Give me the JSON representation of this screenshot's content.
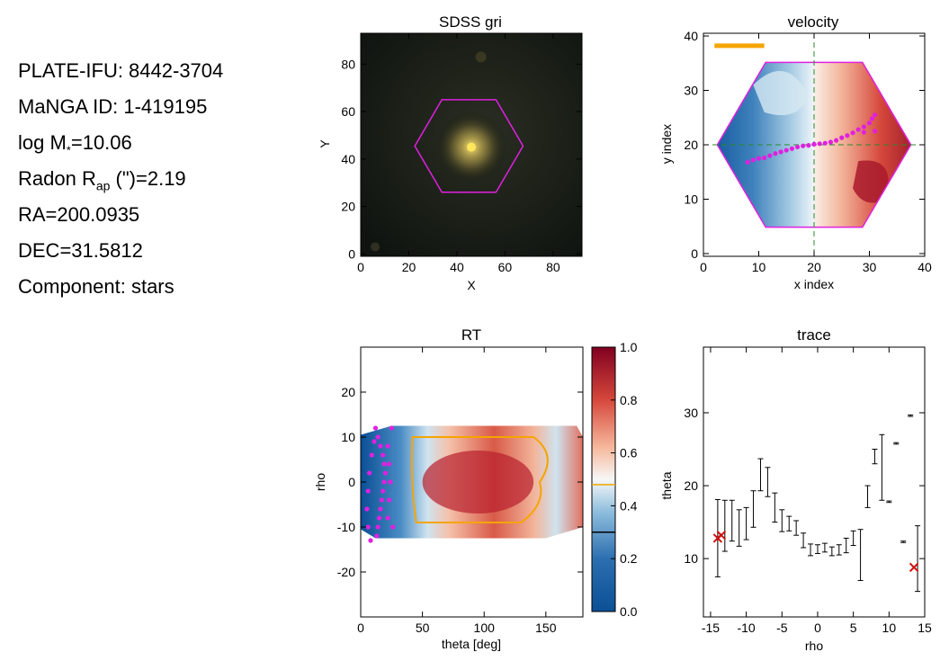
{
  "info": {
    "plate_ifu": "PLATE-IFU: 8442-3704",
    "manga_id": "MaNGA ID: 1-419195",
    "logm_prefix": "log M",
    "logm_sub": "*",
    "logm_value": "=10.06",
    "radon_prefix": "Radon R",
    "radon_sub": "ap",
    "radon_value": " (\")=2.19",
    "ra": "RA=200.0935",
    "dec": "DEC=31.5812",
    "component": "Component: stars"
  },
  "colors": {
    "hexagon": "#e020e0",
    "trace_points": "#e020e0",
    "scale_bar": "#f5a500",
    "contour": "#f5a500",
    "guide_lines": "#2a8a2a",
    "cross": "#d01010",
    "colorbar_low": "#0b4f95",
    "colorbar_mid": "#f7f7f7",
    "colorbar_high": "#800020"
  },
  "chart_data": [
    {
      "type": "image",
      "title": "SDSS gri",
      "xlabel": "X",
      "ylabel": "Y",
      "xlim": [
        0,
        92
      ],
      "ylim": [
        -1,
        93
      ],
      "xticks": [
        "0",
        "20",
        "40",
        "60",
        "80"
      ],
      "yticks": [
        "0",
        "20",
        "40",
        "60",
        "80"
      ],
      "galaxy_center": [
        46,
        45
      ],
      "hexagon_center": [
        45,
        45.5
      ],
      "hexagon_radius": 22.5
    },
    {
      "type": "map",
      "title": "velocity",
      "xlabel": "x index",
      "ylabel": "y index",
      "xlim": [
        0,
        40
      ],
      "ylim": [
        -0.5,
        40.5
      ],
      "xticks": [
        "0",
        "10",
        "20",
        "30",
        "40"
      ],
      "yticks": [
        "0",
        "10",
        "20",
        "30",
        "40"
      ],
      "hexagon_center": [
        20,
        20
      ],
      "hexagon_radius": 17.5,
      "guide_x": 20,
      "guide_y": 20,
      "scale_bar": [
        [
          2,
          38.2
        ],
        [
          11,
          38.2
        ]
      ],
      "trace_points": [
        [
          8,
          16.8
        ],
        [
          9,
          17.2
        ],
        [
          10,
          17.5
        ],
        [
          11,
          17.6
        ],
        [
          12,
          18
        ],
        [
          13,
          18.4
        ],
        [
          14,
          18.7
        ],
        [
          15,
          19
        ],
        [
          16,
          19.3
        ],
        [
          17,
          19.6
        ],
        [
          18,
          19.8
        ],
        [
          19,
          19.9
        ],
        [
          20,
          20.1
        ],
        [
          21,
          20.2
        ],
        [
          22,
          20.3
        ],
        [
          23,
          20.5
        ],
        [
          24,
          20.8
        ],
        [
          25,
          21.3
        ],
        [
          26,
          21.7
        ],
        [
          27,
          22.2
        ],
        [
          28,
          22.8
        ],
        [
          29,
          23.3
        ],
        [
          30,
          24
        ],
        [
          30.5,
          24.8
        ],
        [
          31,
          25.5
        ],
        [
          29,
          22.3
        ],
        [
          31,
          22.5
        ]
      ]
    },
    {
      "type": "heatmap",
      "title": "RT",
      "xlabel": "theta [deg]",
      "ylabel": "rho",
      "xlim": [
        0,
        180
      ],
      "ylim": [
        -30,
        30
      ],
      "xticks": [
        "0",
        "50",
        "100",
        "150"
      ],
      "yticks": [
        "-20",
        "-10",
        "0",
        "10",
        "20"
      ],
      "colorbar_ticks": [
        "0.0",
        "0.2",
        "0.4",
        "0.6",
        "0.8",
        "1.0"
      ],
      "colorbar_range": [
        0,
        1
      ],
      "colorbar_marks": [
        {
          "value": 0.48,
          "color": "#f5a500"
        },
        {
          "value": 0.3,
          "color": "#000000"
        }
      ],
      "trace_points": [
        [
          12,
          12
        ],
        [
          14,
          10
        ],
        [
          16,
          8
        ],
        [
          18,
          6
        ],
        [
          19,
          4
        ],
        [
          20,
          2
        ],
        [
          19,
          0
        ],
        [
          18,
          -2
        ],
        [
          17,
          -4
        ],
        [
          16,
          -6
        ],
        [
          15,
          -8
        ],
        [
          14,
          -10
        ],
        [
          13,
          -12
        ],
        [
          8,
          -13
        ],
        [
          6,
          -10
        ],
        [
          5,
          -6
        ],
        [
          6,
          -2
        ],
        [
          7,
          2
        ],
        [
          9,
          6
        ],
        [
          11,
          9
        ],
        [
          25,
          12
        ],
        [
          22,
          8
        ],
        [
          23,
          4
        ],
        [
          24,
          0
        ],
        [
          23,
          -4
        ],
        [
          22,
          -8
        ],
        [
          26,
          -10
        ]
      ]
    },
    {
      "type": "errorbar",
      "title": "trace",
      "xlabel": "rho",
      "ylabel": "theta",
      "xlim": [
        -16,
        15
      ],
      "ylim": [
        2,
        39
      ],
      "xticks": [
        "-15",
        "-10",
        "-5",
        "0",
        "5",
        "10",
        "15"
      ],
      "yticks": [
        "10",
        "20",
        "30"
      ],
      "points": [
        {
          "x": -14,
          "y": 12.8,
          "err": 5.3
        },
        {
          "x": -13,
          "y": 14.5,
          "err": 3.5
        },
        {
          "x": -12,
          "y": 15.2,
          "err": 2.8
        },
        {
          "x": -11,
          "y": 14.2,
          "err": 2.5
        },
        {
          "x": -10,
          "y": 14.8,
          "err": 2.2
        },
        {
          "x": -9,
          "y": 16.8,
          "err": 2.5
        },
        {
          "x": -8,
          "y": 21.5,
          "err": 2.2
        },
        {
          "x": -7,
          "y": 20.5,
          "err": 2.0
        },
        {
          "x": -6,
          "y": 17.0,
          "err": 2.0
        },
        {
          "x": -5,
          "y": 15.2,
          "err": 1.5
        },
        {
          "x": -4,
          "y": 14.8,
          "err": 1.0
        },
        {
          "x": -3,
          "y": 14.2,
          "err": 1.0
        },
        {
          "x": -2,
          "y": 12.5,
          "err": 1.0
        },
        {
          "x": -1,
          "y": 11.2,
          "err": 0.8
        },
        {
          "x": 0,
          "y": 11.3,
          "err": 0.6
        },
        {
          "x": 1,
          "y": 11.5,
          "err": 0.6
        },
        {
          "x": 2,
          "y": 11.0,
          "err": 0.6
        },
        {
          "x": 3,
          "y": 11.2,
          "err": 0.7
        },
        {
          "x": 4,
          "y": 11.8,
          "err": 1.0
        },
        {
          "x": 5,
          "y": 12.8,
          "err": 1.0
        },
        {
          "x": 6,
          "y": 10.5,
          "err": 3.5
        },
        {
          "x": 7,
          "y": 18.5,
          "err": 1.5
        },
        {
          "x": 8,
          "y": 24.0,
          "err": 1.0
        },
        {
          "x": 9,
          "y": 22.5,
          "err": 4.5
        },
        {
          "x": 10,
          "y": 17.8,
          "err": 0.1
        },
        {
          "x": 11,
          "y": 25.8,
          "err": 0.1
        },
        {
          "x": 12,
          "y": 12.3,
          "err": 0.1
        },
        {
          "x": 13,
          "y": 29.6,
          "err": 0.1
        },
        {
          "x": 14,
          "y": 10.0,
          "err": 4.5
        }
      ],
      "crosses": [
        [
          -14,
          12.8
        ],
        [
          -13.5,
          13.2
        ],
        [
          13.5,
          8.8
        ]
      ]
    }
  ]
}
